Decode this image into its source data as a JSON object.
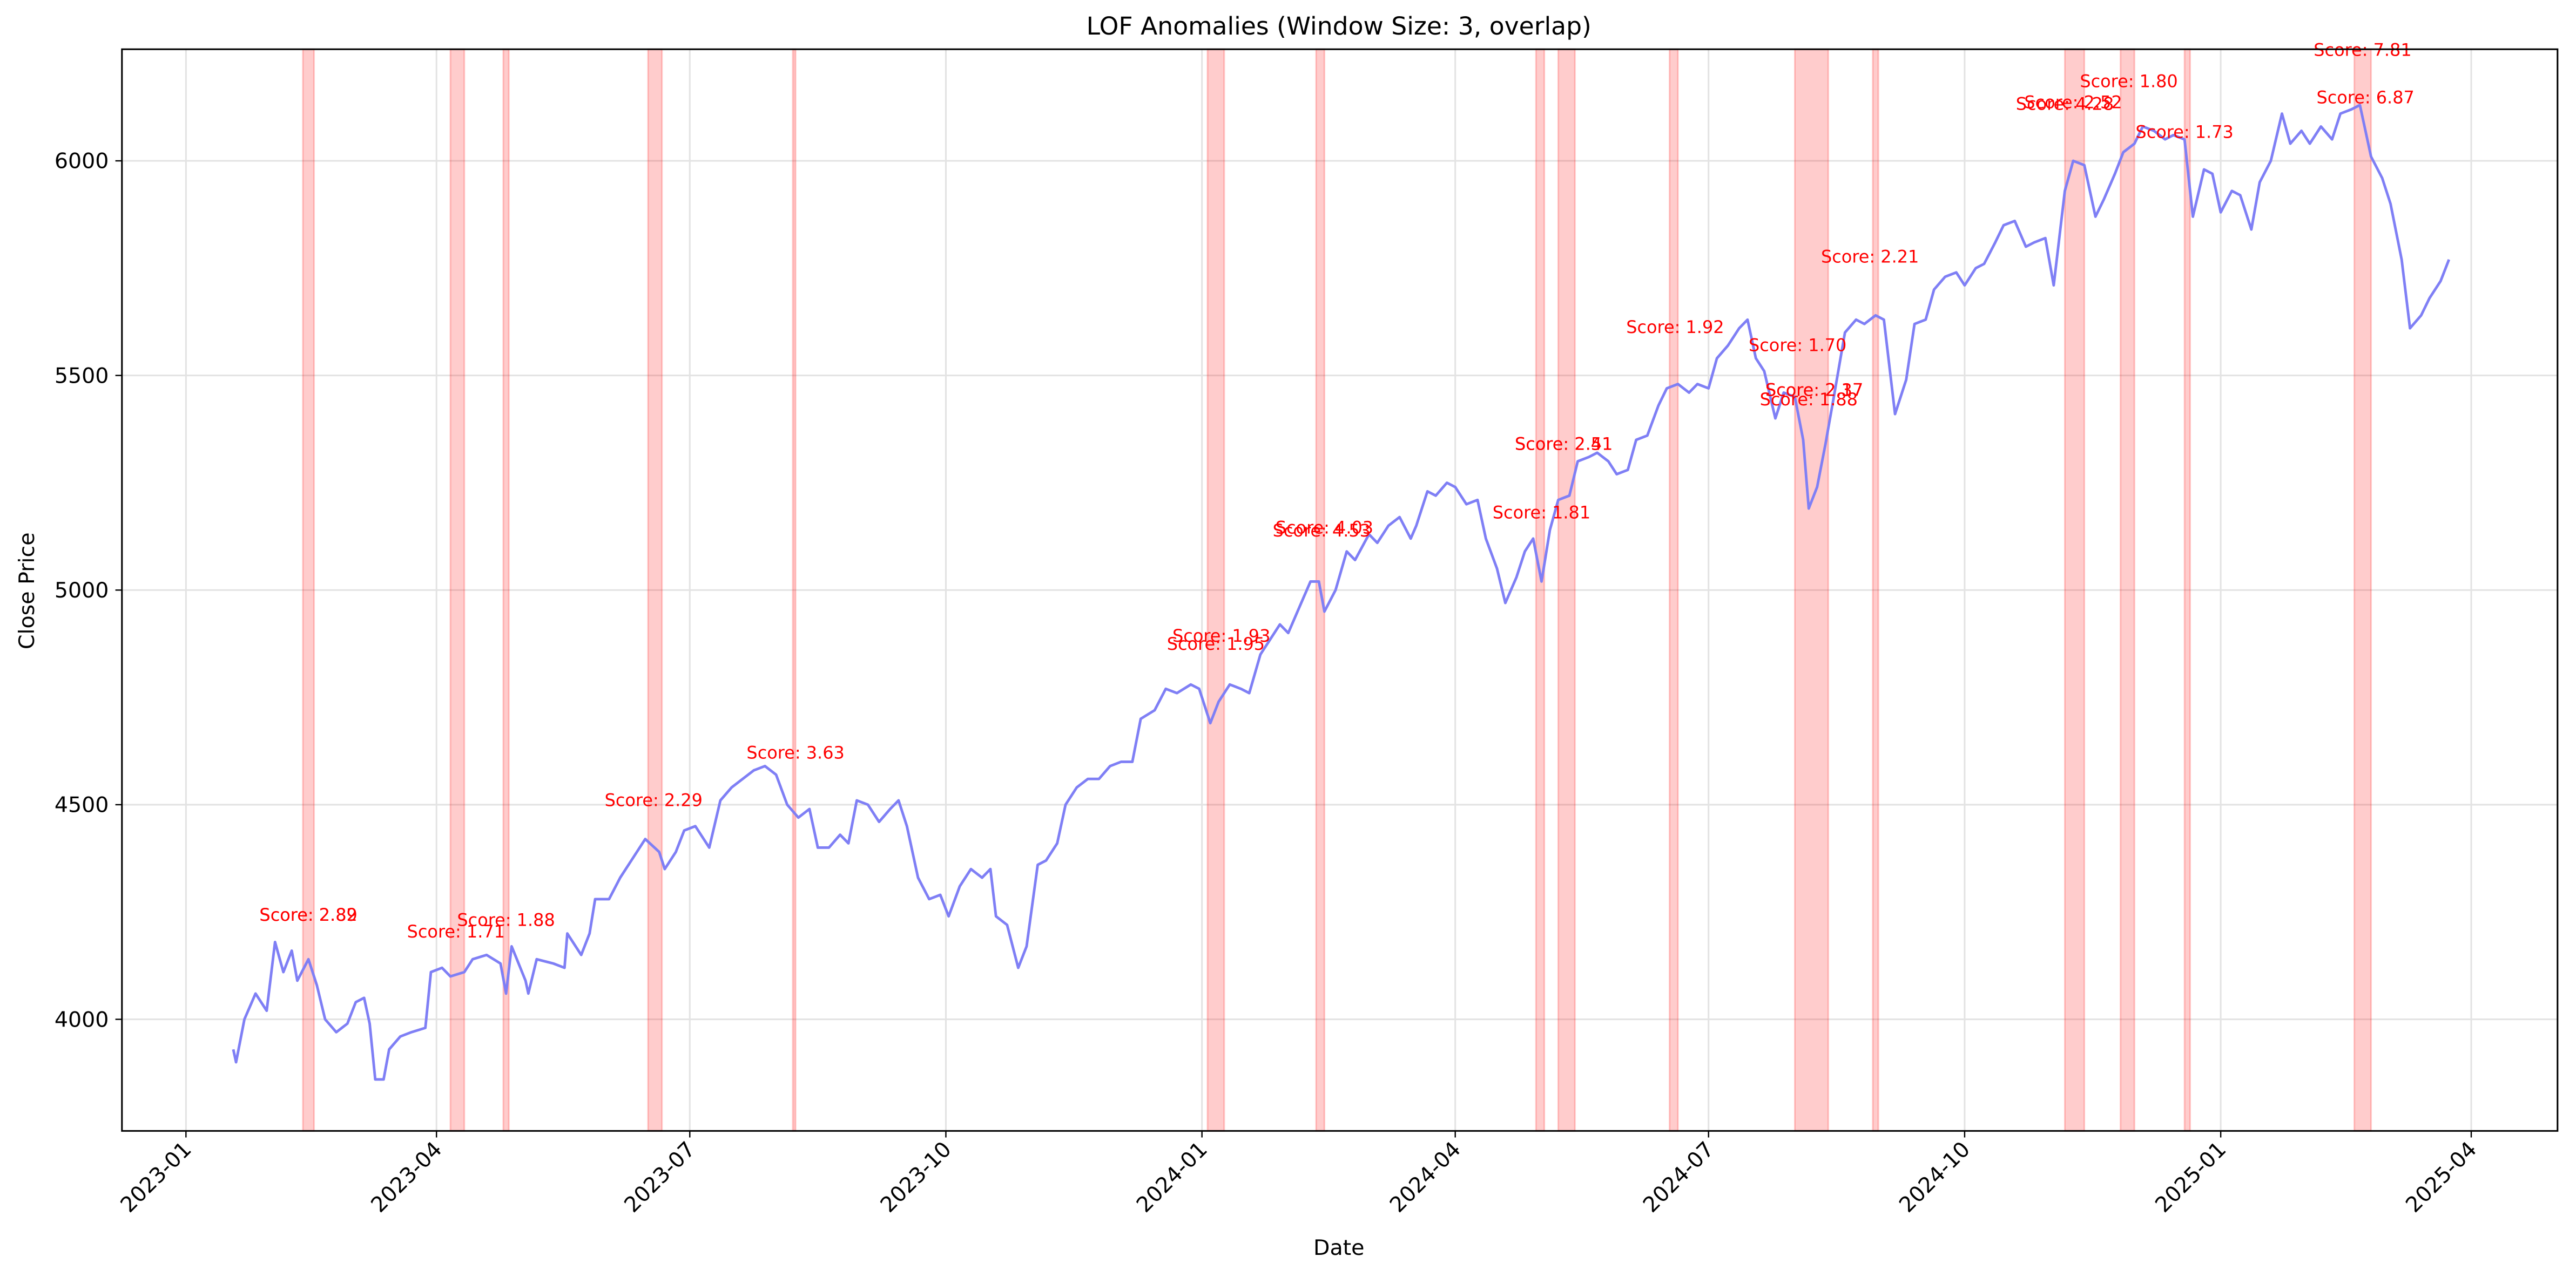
{
  "chart_data": {
    "type": "line",
    "title": "LOF Anomalies (Window Size: 3, overlap)",
    "x_label": "Date",
    "y_label": "Close Price",
    "x": [
      "2023-01-18",
      "2023-01-19",
      "2023-01-22",
      "2023-01-26",
      "2023-01-30",
      "2023-02-02",
      "2023-02-05",
      "2023-02-08",
      "2023-02-10",
      "2023-02-14",
      "2023-02-17",
      "2023-02-20",
      "2023-02-24",
      "2023-02-28",
      "2023-03-03",
      "2023-03-06",
      "2023-03-08",
      "2023-03-10",
      "2023-03-13",
      "2023-03-15",
      "2023-03-19",
      "2023-03-23",
      "2023-03-28",
      "2023-03-30",
      "2023-04-03",
      "2023-04-06",
      "2023-04-11",
      "2023-04-14",
      "2023-04-19",
      "2023-04-24",
      "2023-04-26",
      "2023-04-28",
      "2023-05-03",
      "2023-05-04",
      "2023-05-07",
      "2023-05-13",
      "2023-05-17",
      "2023-05-18",
      "2023-05-23",
      "2023-05-26",
      "2023-05-28",
      "2023-06-02",
      "2023-06-06",
      "2023-06-10",
      "2023-06-15",
      "2023-06-20",
      "2023-06-22",
      "2023-06-26",
      "2023-06-29",
      "2023-07-03",
      "2023-07-08",
      "2023-07-12",
      "2023-07-16",
      "2023-07-20",
      "2023-07-24",
      "2023-07-28",
      "2023-08-01",
      "2023-08-05",
      "2023-08-09",
      "2023-08-13",
      "2023-08-16",
      "2023-08-20",
      "2023-08-24",
      "2023-08-27",
      "2023-08-30",
      "2023-09-03",
      "2023-09-07",
      "2023-09-11",
      "2023-09-14",
      "2023-09-17",
      "2023-09-21",
      "2023-09-25",
      "2023-09-29",
      "2023-10-02",
      "2023-10-06",
      "2023-10-10",
      "2023-10-14",
      "2023-10-17",
      "2023-10-19",
      "2023-10-23",
      "2023-10-27",
      "2023-10-30",
      "2023-11-03",
      "2023-11-06",
      "2023-11-10",
      "2023-11-13",
      "2023-11-17",
      "2023-11-21",
      "2023-11-25",
      "2023-11-29",
      "2023-12-03",
      "2023-12-07",
      "2023-12-10",
      "2023-12-15",
      "2023-12-19",
      "2023-12-23",
      "2023-12-28",
      "2023-12-31",
      "2024-01-04",
      "2024-01-07",
      "2024-01-11",
      "2024-01-15",
      "2024-01-18",
      "2024-01-22",
      "2024-01-26",
      "2024-01-29",
      "2024-02-01",
      "2024-02-05",
      "2024-02-09",
      "2024-02-12",
      "2024-02-14",
      "2024-02-18",
      "2024-02-22",
      "2024-02-25",
      "2024-03-01",
      "2024-03-04",
      "2024-03-08",
      "2024-03-12",
      "2024-03-16",
      "2024-03-18",
      "2024-03-22",
      "2024-03-25",
      "2024-03-29",
      "2024-04-01",
      "2024-04-05",
      "2024-04-09",
      "2024-04-12",
      "2024-04-16",
      "2024-04-19",
      "2024-04-23",
      "2024-04-26",
      "2024-04-29",
      "2024-05-02",
      "2024-05-05",
      "2024-05-08",
      "2024-05-12",
      "2024-05-15",
      "2024-05-19",
      "2024-05-22",
      "2024-05-26",
      "2024-05-29",
      "2024-06-02",
      "2024-06-05",
      "2024-06-09",
      "2024-06-13",
      "2024-06-16",
      "2024-06-20",
      "2024-06-24",
      "2024-06-27",
      "2024-07-01",
      "2024-07-04",
      "2024-07-08",
      "2024-07-12",
      "2024-07-15",
      "2024-07-18",
      "2024-07-21",
      "2024-07-25",
      "2024-07-28",
      "2024-08-01",
      "2024-08-04",
      "2024-08-06",
      "2024-08-09",
      "2024-08-12",
      "2024-08-15",
      "2024-08-19",
      "2024-08-23",
      "2024-08-26",
      "2024-08-30",
      "2024-09-02",
      "2024-09-06",
      "2024-09-10",
      "2024-09-13",
      "2024-09-17",
      "2024-09-20",
      "2024-09-24",
      "2024-09-28",
      "2024-10-01",
      "2024-10-05",
      "2024-10-08",
      "2024-10-12",
      "2024-10-15",
      "2024-10-19",
      "2024-10-23",
      "2024-10-26",
      "2024-10-30",
      "2024-11-02",
      "2024-11-06",
      "2024-11-09",
      "2024-11-13",
      "2024-11-17",
      "2024-11-20",
      "2024-11-24",
      "2024-11-27",
      "2024-12-01",
      "2024-12-04",
      "2024-12-08",
      "2024-12-12",
      "2024-12-15",
      "2024-12-19",
      "2024-12-22",
      "2024-12-26",
      "2024-12-29",
      "2025-01-01",
      "2025-01-05",
      "2025-01-08",
      "2025-01-12",
      "2025-01-15",
      "2025-01-19",
      "2025-01-23",
      "2025-01-26",
      "2025-01-30",
      "2025-02-02",
      "2025-02-06",
      "2025-02-10",
      "2025-02-13",
      "2025-02-17",
      "2025-02-20",
      "2025-02-24",
      "2025-02-28",
      "2025-03-03",
      "2025-03-07",
      "2025-03-10",
      "2025-03-14",
      "2025-03-17",
      "2025-03-21",
      "2025-03-24"
    ],
    "values": [
      3930,
      3900,
      4000,
      4060,
      4020,
      4180,
      4110,
      4160,
      4090,
      4140,
      4080,
      4000,
      3970,
      3990,
      4040,
      4050,
      3990,
      3860,
      3860,
      3930,
      3960,
      3970,
      3980,
      4110,
      4120,
      4100,
      4110,
      4140,
      4150,
      4130,
      4060,
      4170,
      4090,
      4060,
      4140,
      4130,
      4120,
      4200,
      4150,
      4200,
      4280,
      4280,
      4330,
      4370,
      4420,
      4390,
      4350,
      4390,
      4440,
      4450,
      4400,
      4510,
      4540,
      4560,
      4580,
      4590,
      4570,
      4500,
      4470,
      4490,
      4400,
      4400,
      4430,
      4410,
      4510,
      4500,
      4460,
      4490,
      4510,
      4450,
      4330,
      4280,
      4290,
      4240,
      4310,
      4350,
      4330,
      4350,
      4240,
      4220,
      4120,
      4170,
      4360,
      4370,
      4410,
      4500,
      4540,
      4560,
      4560,
      4590,
      4600,
      4600,
      4700,
      4720,
      4770,
      4760,
      4780,
      4770,
      4690,
      4740,
      4780,
      4770,
      4760,
      4850,
      4890,
      4920,
      4900,
      4960,
      5020,
      5020,
      4950,
      5000,
      5090,
      5070,
      5130,
      5110,
      5150,
      5170,
      5120,
      5150,
      5230,
      5220,
      5250,
      5240,
      5200,
      5210,
      5120,
      5050,
      4970,
      5030,
      5090,
      5120,
      5020,
      5140,
      5210,
      5220,
      5300,
      5310,
      5320,
      5300,
      5270,
      5280,
      5350,
      5360,
      5430,
      5470,
      5480,
      5460,
      5480,
      5470,
      5540,
      5570,
      5610,
      5630,
      5540,
      5510,
      5400,
      5460,
      5450,
      5350,
      5190,
      5240,
      5340,
      5450,
      5600,
      5630,
      5620,
      5640,
      5630,
      5410,
      5490,
      5620,
      5630,
      5700,
      5730,
      5740,
      5710,
      5750,
      5760,
      5810,
      5850,
      5860,
      5800,
      5810,
      5820,
      5710,
      5930,
      6000,
      5990,
      5870,
      5910,
      5970,
      6020,
      6040,
      6080,
      6070,
      6050,
      6060,
      6050,
      5870,
      5980,
      5970,
      5880,
      5930,
      5920,
      5840,
      5950,
      6000,
      6110,
      6040,
      6070,
      6040,
      6080,
      6050,
      6110,
      6120,
      6130,
      6010,
      5960,
      5900,
      5770,
      5610,
      5640,
      5680,
      5720,
      5770
    ],
    "color": "#7f7ff5",
    "anomaly_color": "#ff0000",
    "anomalies": [
      {
        "start": "2023-02-12",
        "end": "2023-02-16"
      },
      {
        "start": "2023-04-06",
        "end": "2023-04-11"
      },
      {
        "start": "2023-04-25",
        "end": "2023-04-27"
      },
      {
        "start": "2023-06-16",
        "end": "2023-06-21"
      },
      {
        "start": "2023-08-07",
        "end": "2023-08-08"
      },
      {
        "start": "2024-01-03",
        "end": "2024-01-09"
      },
      {
        "start": "2024-02-11",
        "end": "2024-02-14"
      },
      {
        "start": "2024-04-30",
        "end": "2024-05-03"
      },
      {
        "start": "2024-05-08",
        "end": "2024-05-14"
      },
      {
        "start": "2024-06-17",
        "end": "2024-06-20"
      },
      {
        "start": "2024-08-01",
        "end": "2024-08-13"
      },
      {
        "start": "2024-08-29",
        "end": "2024-08-31"
      },
      {
        "start": "2024-11-06",
        "end": "2024-11-13"
      },
      {
        "start": "2024-11-26",
        "end": "2024-12-01"
      },
      {
        "start": "2024-12-19",
        "end": "2024-12-21"
      },
      {
        "start": "2025-02-18",
        "end": "2025-02-24"
      }
    ],
    "annotations": [
      {
        "text": "Score: 2.89",
        "x": "2023-02-14",
        "y": 4245
      },
      {
        "text": "Score: 2.82",
        "x": "2023-02-14",
        "y": 4245
      },
      {
        "text": "Score: 1.71",
        "x": "2023-04-08",
        "y": 4206
      },
      {
        "text": "Score: 1.88",
        "x": "2023-04-26",
        "y": 4233
      },
      {
        "text": "Score: 2.29",
        "x": "2023-06-18",
        "y": 4512
      },
      {
        "text": "Score: 3.63",
        "x": "2023-08-08",
        "y": 4623
      },
      {
        "text": "Score: 1.93",
        "x": "2024-01-08",
        "y": 4895
      },
      {
        "text": "Score: 1.95",
        "x": "2024-01-06",
        "y": 4876
      },
      {
        "text": "Score: 4.03",
        "x": "2024-02-14",
        "y": 5147
      },
      {
        "text": "Score: 4.53",
        "x": "2024-02-13",
        "y": 5140
      },
      {
        "text": "Score: 1.81",
        "x": "2024-05-02",
        "y": 5182
      },
      {
        "text": "Score: 2.51",
        "x": "2024-05-10",
        "y": 5342
      },
      {
        "text": "Score: 2.41",
        "x": "2024-05-10",
        "y": 5342
      },
      {
        "text": "Score: 1.92",
        "x": "2024-06-19",
        "y": 5614
      },
      {
        "text": "Score: 1.70",
        "x": "2024-08-02",
        "y": 5572
      },
      {
        "text": "Score: 2.17",
        "x": "2024-08-08",
        "y": 5468
      },
      {
        "text": "Score: 2.37",
        "x": "2024-08-08",
        "y": 5468
      },
      {
        "text": "Score: 1.88",
        "x": "2024-08-06",
        "y": 5446
      },
      {
        "text": "Score: 2.21",
        "x": "2024-08-28",
        "y": 5778
      },
      {
        "text": "Score: 4.28",
        "x": "2024-11-06",
        "y": 6134
      },
      {
        "text": "Score: 2.52",
        "x": "2024-11-09",
        "y": 6138
      },
      {
        "text": "Score: 1.80",
        "x": "2024-11-29",
        "y": 6187
      },
      {
        "text": "Score: 1.73",
        "x": "2024-12-19",
        "y": 6069
      },
      {
        "text": "Score: 7.81",
        "x": "2025-02-21",
        "y": 6260
      },
      {
        "text": "Score: 6.87",
        "x": "2025-02-22",
        "y": 6149
      }
    ],
    "xlim": [
      "2022-12-09",
      "2025-05-02"
    ],
    "xticks": [
      "2023-01",
      "2023-04",
      "2023-07",
      "2023-10",
      "2024-01",
      "2024-04",
      "2024-07",
      "2024-10",
      "2025-01",
      "2025-04"
    ],
    "ylim": [
      3740,
      6260
    ],
    "yticks": [
      4000,
      4500,
      5000,
      5500,
      6000
    ],
    "grid": true
  }
}
